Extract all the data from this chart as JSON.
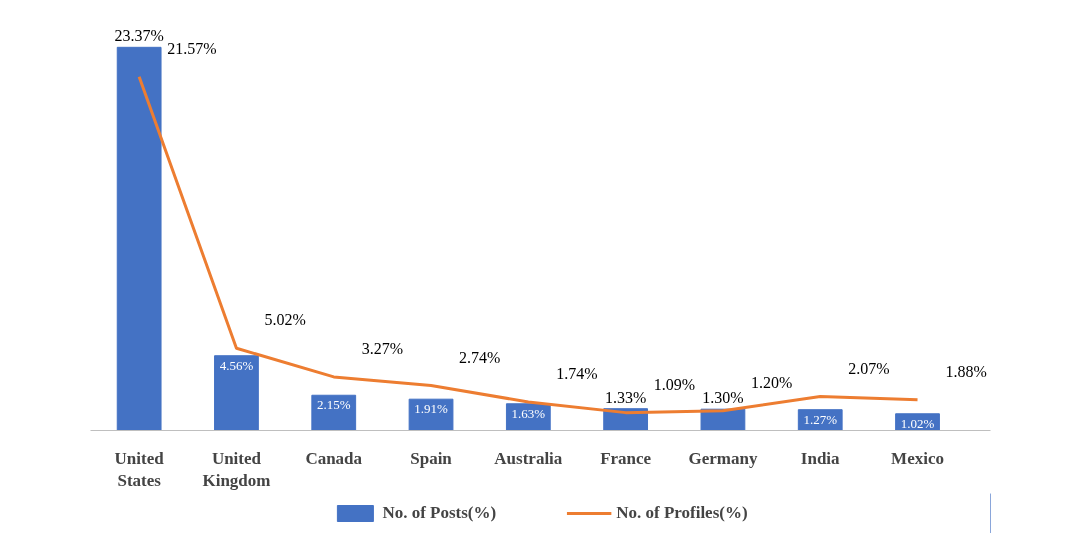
{
  "chart_data": {
    "type": "bar",
    "categories": [
      "United States",
      "United Kingdom",
      "Canada",
      "Spain",
      "Australia",
      "France",
      "Germany",
      "India",
      "Mexico"
    ],
    "series": [
      {
        "name": "No. of Posts(%)",
        "type": "bar",
        "color": "#4472c4",
        "values": [
          23.37,
          4.56,
          2.15,
          1.91,
          1.63,
          1.33,
          1.3,
          1.27,
          1.02
        ],
        "value_labels": [
          "23.37%",
          "4.56%",
          "2.15%",
          "1.91%",
          "1.63%",
          "1.33%",
          "1.30%",
          "1.27%",
          "1.02%"
        ]
      },
      {
        "name": "No. of Profiles(%)",
        "type": "line",
        "color": "#ed7d31",
        "values": [
          21.57,
          5.02,
          3.27,
          2.74,
          1.74,
          1.09,
          1.2,
          2.07,
          1.88
        ],
        "value_labels": [
          "21.57%",
          "5.02%",
          "3.27%",
          "2.74%",
          "1.74%",
          "1.09%",
          "1.20%",
          "2.07%",
          "1.88%"
        ]
      }
    ],
    "legend": "bottom",
    "grid": false
  }
}
